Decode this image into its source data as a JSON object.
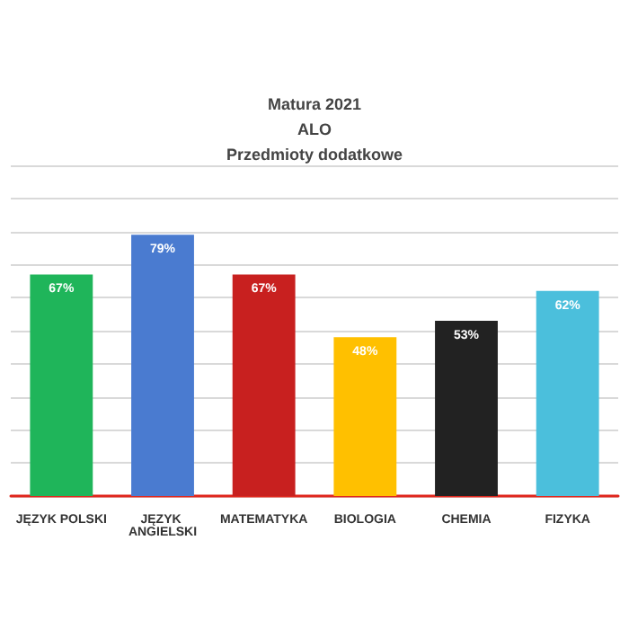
{
  "chart_data": {
    "type": "bar",
    "title": "Matura 2021\nALO\nPrzedmioty dodatkowe",
    "categories": [
      "JĘZYK POLSKI",
      "JĘZYK ANGIELSKI",
      "MATEMATYKA",
      "BIOLOGIA",
      "CHEMIA",
      "FIZYKA"
    ],
    "values": [
      67,
      79,
      67,
      48,
      53,
      62
    ],
    "colors": [
      "#1fb55a",
      "#4a7bd0",
      "#c8201f",
      "#ffc000",
      "#222222",
      "#4bbfdc"
    ],
    "value_labels": [
      "67%",
      "79%",
      "67%",
      "48%",
      "53%",
      "62%"
    ],
    "ylim": [
      0,
      100
    ],
    "yticks": [
      {
        "value": 0,
        "label": null
      },
      {
        "value": 10,
        "label": null
      },
      {
        "value": 20,
        "label": null
      },
      {
        "value": 30,
        "label": null
      },
      {
        "value": 40,
        "label": null
      },
      {
        "value": 50,
        "label": null
      },
      {
        "value": 60,
        "label": null
      },
      {
        "value": 70,
        "label": null
      },
      {
        "value": 80,
        "label": null
      },
      {
        "value": 90,
        "label": null
      },
      {
        "value": 100,
        "label": null
      }
    ],
    "grid": true,
    "tick_labels": "x"
  }
}
